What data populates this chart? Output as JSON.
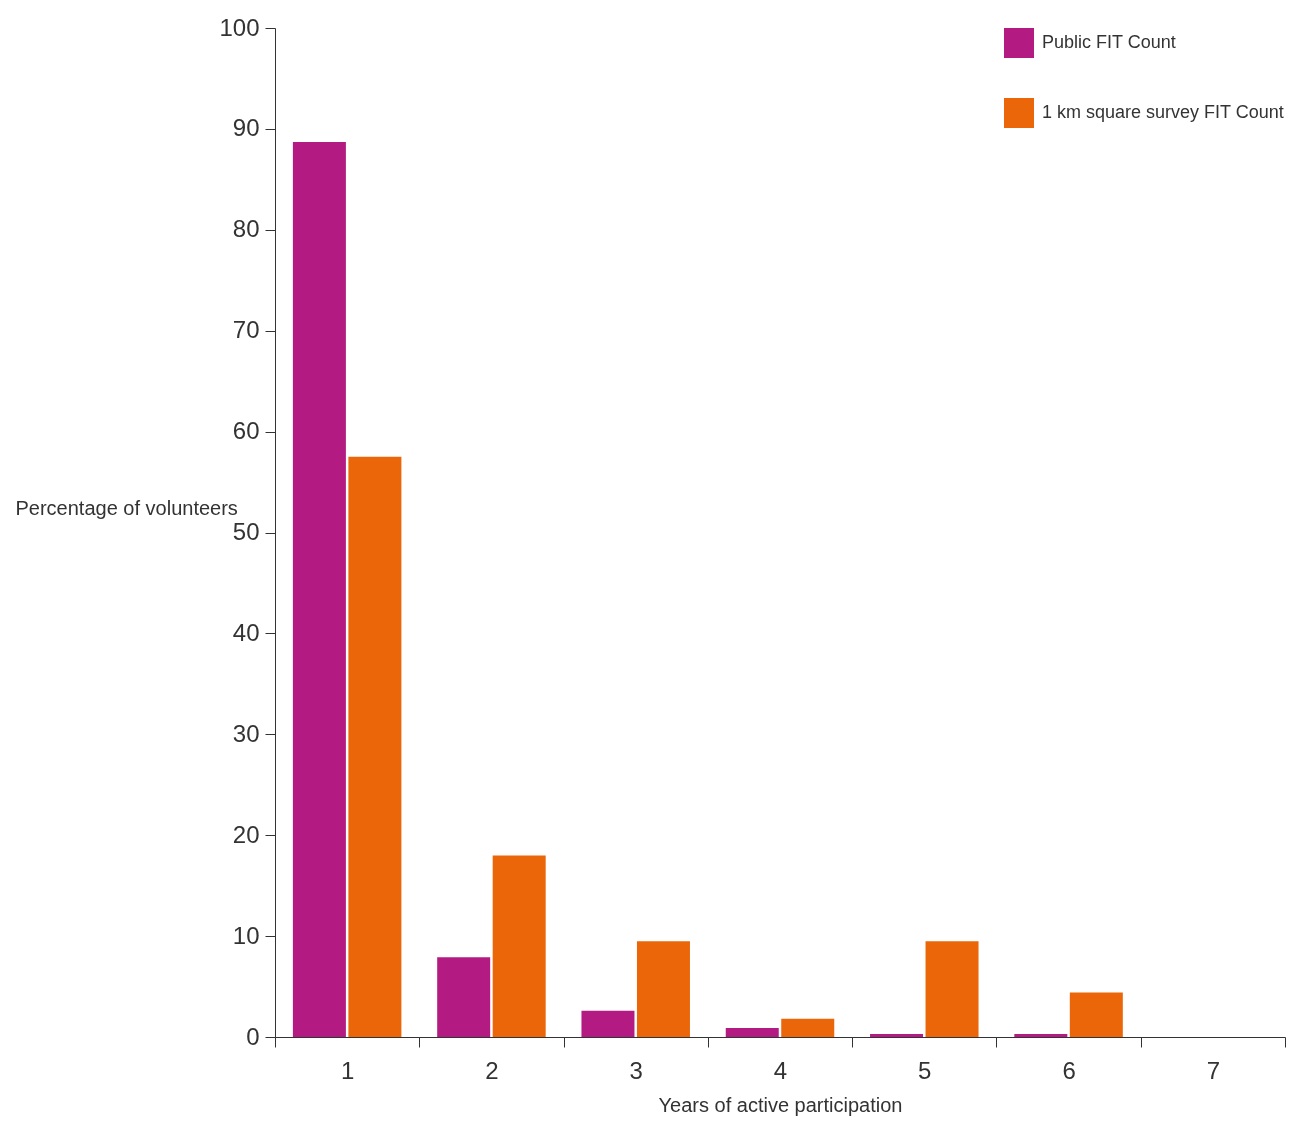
{
  "chart_data": {
    "type": "bar",
    "xlabel": "Years of active participation",
    "ylabel": "Percentage of volunteers",
    "categories": [
      "1",
      "2",
      "3",
      "4",
      "5",
      "6",
      "7"
    ],
    "series": [
      {
        "name": "Public FIT Count",
        "color": "#b31b82",
        "values": [
          88.7,
          7.9,
          2.6,
          0.9,
          0.3,
          0.3,
          0
        ]
      },
      {
        "name": "1 km square survey FIT Count",
        "color": "#eb6608",
        "values": [
          57.5,
          18.0,
          9.5,
          1.8,
          9.5,
          4.4,
          0
        ]
      }
    ],
    "ylim": [
      0,
      100
    ],
    "yticks": [
      0,
      10,
      20,
      30,
      40,
      50,
      60,
      70,
      80,
      90,
      100
    ],
    "grid": false,
    "legend": "top right"
  }
}
